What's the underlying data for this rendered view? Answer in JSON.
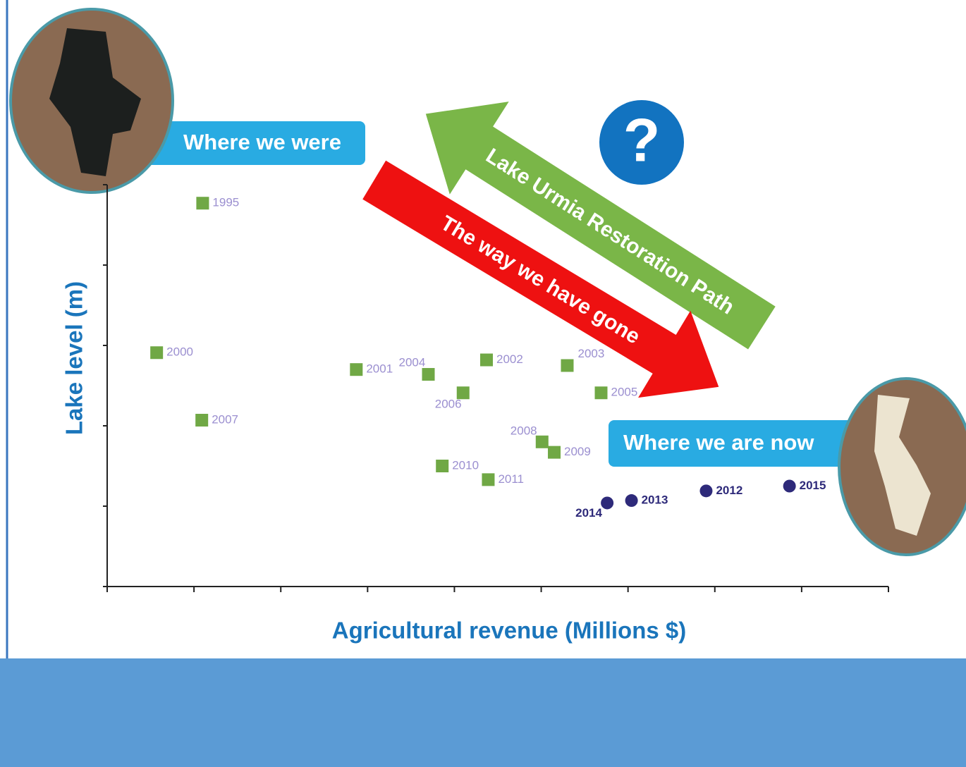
{
  "chart_data": {
    "type": "scatter",
    "xlabel": "Agricultural revenue (Millions $)",
    "ylabel": "Lake level (m)",
    "xlim": [
      0,
      9
    ],
    "ylim": [
      0,
      5
    ],
    "xticks": [
      0,
      1,
      2,
      3,
      4,
      5,
      6,
      7,
      8,
      9
    ],
    "yticks": [
      0,
      1,
      2,
      3,
      4,
      5
    ],
    "series": [
      {
        "marker": "square",
        "color": "#70a845",
        "label_color": "#9b8fd0",
        "labels": [
          "1995",
          "2000",
          "2001",
          "2004",
          "2002",
          "2003",
          "2006",
          "2005",
          "2007",
          "2008",
          "2009",
          "2010",
          "2011"
        ],
        "x": [
          1.1,
          0.57,
          2.87,
          3.7,
          4.37,
          5.3,
          4.1,
          5.69,
          1.09,
          5.01,
          5.15,
          3.86,
          4.39
        ],
        "values": [
          4.77,
          2.91,
          2.7,
          2.64,
          2.82,
          2.75,
          2.41,
          2.41,
          2.07,
          1.8,
          1.67,
          1.5,
          1.33
        ]
      },
      {
        "marker": "circle",
        "color": "#2e2a7a",
        "label_color": "#2e2a7a",
        "labels": [
          "2014",
          "2013",
          "2012",
          "2015"
        ],
        "x": [
          5.76,
          6.04,
          6.9,
          7.86
        ],
        "values": [
          1.04,
          1.07,
          1.19,
          1.25
        ]
      }
    ],
    "annotations": {
      "past": "Where we were",
      "present": "Where we are now",
      "restoration": "Lake Urmia Restoration Path",
      "trend": "The way we have gone",
      "question": "?"
    }
  }
}
